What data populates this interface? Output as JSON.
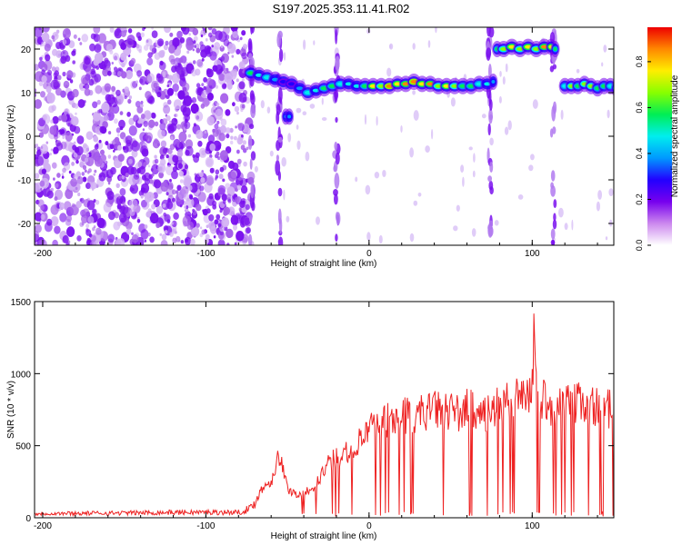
{
  "figure_title": "S197.2025.353.11.41.R02",
  "chart_data": [
    {
      "type": "heatmap",
      "title": "S197.2025.353.11.41.R02",
      "xlabel": "Height of straight line (km)",
      "ylabel": "Frequency (Hz)",
      "xlim": [
        -205,
        150
      ],
      "ylim": [
        -25,
        25
      ],
      "xticks": [
        -200,
        -100,
        0,
        100
      ],
      "yticks": [
        -20,
        -10,
        0,
        10,
        20
      ],
      "xticklabels": [
        "-200",
        "-100",
        "0",
        "100"
      ],
      "yticklabels": [
        "-20",
        "-10",
        "0",
        "10",
        "20"
      ],
      "colorbar": {
        "label": "Normalized spectral amplitude",
        "range": [
          0,
          0.95
        ],
        "ticks": [
          0.0,
          0.2,
          0.4,
          0.6,
          0.8
        ],
        "ticklabels": [
          "0.0",
          "0.2",
          "0.4",
          "0.6",
          "0.8"
        ],
        "colormap": [
          "#ffffff",
          "#cc88ee",
          "#7700ee",
          "#2200ff",
          "#0099ff",
          "#00eeee",
          "#00ee55",
          "#88ff00",
          "#ffee00",
          "#ff8800",
          "#ee0000"
        ]
      },
      "noise_region_x": [
        -205,
        -72
      ],
      "tracks": [
        {
          "x": [
            -75,
            -70,
            -65,
            -60,
            -55,
            -50,
            -45,
            -40,
            -35,
            -30,
            -25,
            -20,
            -15,
            -10,
            -5,
            0,
            5,
            10,
            15,
            20,
            25,
            30,
            35,
            40,
            45,
            50,
            55,
            60,
            65,
            70,
            75
          ],
          "freq": [
            14.5,
            14.0,
            13.5,
            13.0,
            12.5,
            12.0,
            11.0,
            10.0,
            10.5,
            11.0,
            11.5,
            12.0,
            12.0,
            11.5,
            11.5,
            11.5,
            11.5,
            11.5,
            12.0,
            12.0,
            12.5,
            12.0,
            12.0,
            11.5,
            11.5,
            11.5,
            11.5,
            11.5,
            12.0,
            12.0,
            12.5
          ],
          "amp": [
            0.55,
            0.45,
            0.5,
            0.35,
            0.3,
            0.3,
            0.35,
            0.5,
            0.45,
            0.55,
            0.6,
            0.5,
            0.45,
            0.45,
            0.6,
            0.8,
            0.7,
            0.9,
            0.75,
            0.85,
            0.9,
            0.8,
            0.85,
            0.7,
            0.75,
            0.65,
            0.6,
            0.55,
            0.5,
            0.45,
            0.4
          ]
        },
        {
          "x": [
            77,
            80,
            85,
            90,
            95,
            100,
            105,
            110,
            113
          ],
          "freq": [
            20.0,
            20.0,
            20.5,
            20.0,
            20.5,
            20.0,
            20.5,
            20.5,
            20.0
          ],
          "amp": [
            0.6,
            0.7,
            0.75,
            0.7,
            0.8,
            0.65,
            0.85,
            0.8,
            0.6
          ]
        },
        {
          "x": [
            118,
            122,
            126,
            130,
            134,
            138,
            142,
            146,
            150
          ],
          "freq": [
            11.5,
            11.5,
            11.5,
            12.0,
            11.5,
            11.0,
            11.5,
            11.5,
            11.0
          ],
          "amp": [
            0.5,
            0.7,
            0.6,
            0.65,
            0.7,
            0.6,
            0.55,
            0.5,
            0.5
          ]
        },
        {
          "x": [
            -52,
            -50
          ],
          "freq": [
            4.5,
            4.5
          ],
          "amp": [
            0.4,
            0.4
          ]
        }
      ],
      "vertical_streaks_x": [
        -72,
        -55,
        -20,
        74,
        113
      ]
    },
    {
      "type": "line",
      "xlabel": "Height of straight line (km)",
      "ylabel": "SNR (10 * v/v)",
      "xlim": [
        -205,
        150
      ],
      "ylim": [
        0,
        1500
      ],
      "xticks": [
        -200,
        -100,
        0,
        100
      ],
      "yticks": [
        0,
        500,
        1000,
        1500
      ],
      "xticklabels": [
        "-200",
        "-100",
        "0",
        "100"
      ],
      "yticklabels": [
        "0",
        "500",
        "1000",
        "1500"
      ],
      "color": "#ee2222",
      "series": [
        {
          "name": "SNR",
          "x": [
            -205,
            -150,
            -110,
            -80,
            -72,
            -65,
            -60,
            -55,
            -50,
            -45,
            -40,
            -35,
            -30,
            -25,
            -20,
            -15,
            -10,
            -5,
            0,
            5,
            10,
            15,
            20,
            25,
            30,
            35,
            40,
            45,
            50,
            55,
            60,
            65,
            70,
            75,
            80,
            85,
            90,
            95,
            100,
            101,
            102,
            103,
            105,
            110,
            115,
            120,
            125,
            130,
            135,
            140,
            145,
            150
          ],
          "values": [
            30,
            35,
            40,
            40,
            70,
            230,
            280,
            470,
            220,
            180,
            180,
            220,
            310,
            400,
            450,
            500,
            500,
            580,
            650,
            700,
            740,
            720,
            760,
            780,
            780,
            800,
            800,
            820,
            800,
            780,
            820,
            820,
            760,
            780,
            840,
            860,
            880,
            900,
            960,
            1500,
            1200,
            860,
            900,
            860,
            820,
            840,
            860,
            870,
            850,
            830,
            820,
            800
          ]
        }
      ]
    }
  ]
}
